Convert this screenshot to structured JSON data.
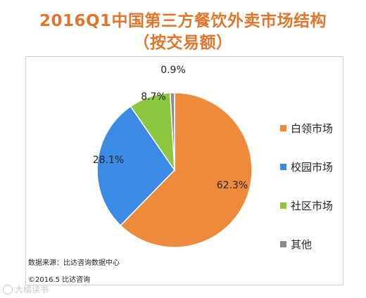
{
  "title": {
    "line1": "2016Q1中国第三方餐饮外卖市场结构",
    "line2": "（按交易额）"
  },
  "chart_data": {
    "type": "pie",
    "categories": [
      "白领市场",
      "校园市场",
      "社区市场",
      "其他"
    ],
    "values": [
      62.3,
      28.1,
      8.7,
      0.9
    ],
    "value_labels": [
      "62.3%",
      "28.1%",
      "8.7%",
      "0.9%"
    ],
    "colors": [
      "#ee8a3c",
      "#3b8ae4",
      "#8dc63f",
      "#8c8c8c"
    ],
    "legend_position": "right"
  },
  "source": {
    "line1": "数据来源：比达咨询数据中心",
    "line2": "©2016.5  比达咨询"
  },
  "watermark": "大橘读书"
}
